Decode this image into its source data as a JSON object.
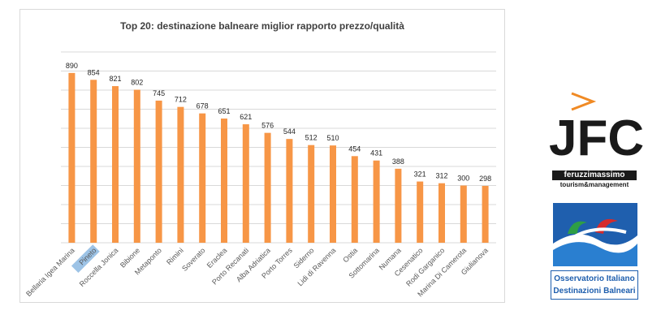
{
  "chart_data": {
    "type": "bar",
    "title": "Top 20: destinazione balneare miglior rapporto prezzo/qualità",
    "xlabel": "",
    "ylabel": "",
    "ylim": [
      0,
      1000
    ],
    "grid": true,
    "legend": "none",
    "bar_color": "#f79646",
    "highlight_color": "#9dc3e6",
    "highlighted_category": "Pineto",
    "categories": [
      "Bellaria Igea Marina",
      "Pineto",
      "Roccella Jonica",
      "Bibione",
      "Metaponto",
      "Rimini",
      "Soverato",
      "Eraclea",
      "Porto Recanati",
      "Alba Adriatica",
      "Porto Torres",
      "Siderno",
      "Lidi di Ravenna",
      "Ostia",
      "Sottomarina",
      "Numana",
      "Cesenatico",
      "Rodi Garganico",
      "Marina Di Camerota",
      "Giulianova"
    ],
    "values": [
      890,
      854,
      821,
      802,
      745,
      712,
      678,
      651,
      621,
      576,
      544,
      512,
      510,
      454,
      431,
      388,
      321,
      312,
      300,
      298
    ]
  },
  "logos": {
    "jfc": {
      "mark": "JFC",
      "line1": "feruzzimassimo",
      "line2": "tourism&management"
    },
    "oidb": {
      "line1": "Osservatorio Italiano",
      "line2": "Destinazioni Balneari"
    }
  }
}
